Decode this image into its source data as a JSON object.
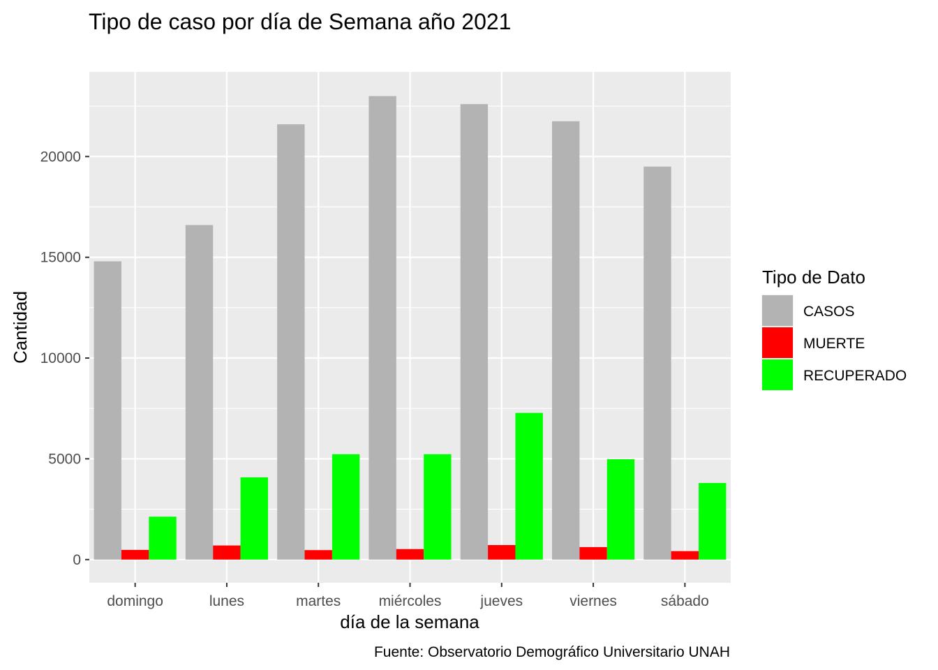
{
  "chart_data": {
    "type": "bar",
    "title": "Tipo de caso por día de Semana año 2021",
    "xlabel": "día de la semana",
    "ylabel": "Cantidad",
    "caption": "Fuente: Observatorio Demográfico Universitario UNAH",
    "categories": [
      "domingo",
      "lunes",
      "martes",
      "miércoles",
      "jueves",
      "viernes",
      "sábado"
    ],
    "series": [
      {
        "name": "CASOS",
        "color": "#b3b3b3",
        "values": [
          14800,
          16600,
          21600,
          23000,
          22600,
          21750,
          19500
        ]
      },
      {
        "name": "MUERTE",
        "color": "#ff0000",
        "values": [
          480,
          700,
          470,
          520,
          720,
          620,
          420
        ]
      },
      {
        "name": "RECUPERADO",
        "color": "#00ff00",
        "values": [
          2130,
          4080,
          5230,
          5230,
          7280,
          4980,
          3800
        ]
      }
    ],
    "ylim": [
      -1150,
      24200
    ],
    "yticks": [
      0,
      5000,
      10000,
      15000,
      20000
    ],
    "ytick_labels": [
      "0",
      "5000",
      "10000",
      "15000",
      "20000"
    ],
    "grid": true,
    "panel_background": "#ebebeb",
    "legend": {
      "title": "Tipo de Dato",
      "position": "right"
    }
  }
}
